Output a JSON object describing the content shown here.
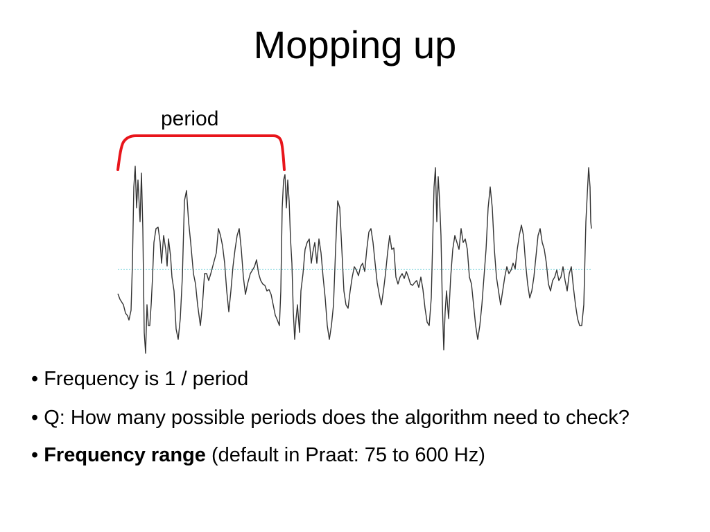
{
  "slide": {
    "title": "Mopping up"
  },
  "figure": {
    "bracket_label": "period",
    "bracket_color": "#e8151b",
    "baseline_color": "#59c9d3",
    "waveform_color": "#333333"
  },
  "bullets": [
    {
      "text": "• Frequency is 1 / period"
    },
    {
      "text": "• Q: How many possible periods does the algorithm need to check?"
    },
    {
      "bullet": "• ",
      "bold": "Frequency range",
      "rest": " (default in Praat: 75 to 600 Hz)"
    }
  ]
}
